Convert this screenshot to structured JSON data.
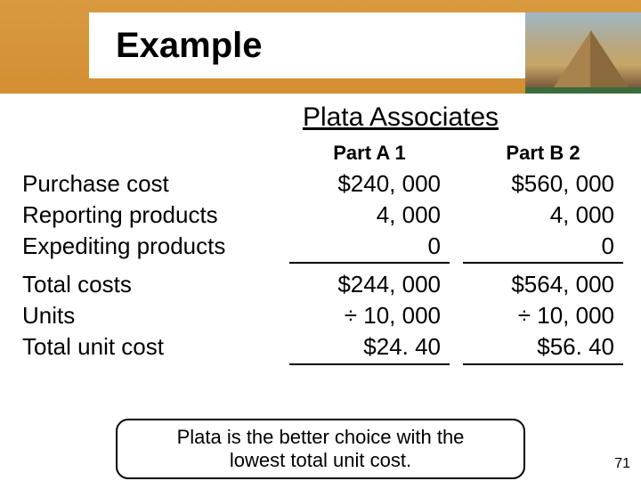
{
  "slide": {
    "title": "Example",
    "subtitle": "Plata Associates",
    "page_number": "71",
    "callout_line1": "Plata is the better choice with the",
    "callout_line2": "lowest total unit cost."
  },
  "table": {
    "col_a_header": "Part A 1",
    "col_b_header": "Part B 2",
    "rows_top": [
      {
        "label": "Purchase cost",
        "a": "$240, 000",
        "b": "$560, 000"
      },
      {
        "label": "Reporting products",
        "a": "4, 000",
        "b": "4, 000"
      },
      {
        "label": "Expediting products",
        "a": "0",
        "b": "0"
      }
    ],
    "rows_bottom": [
      {
        "label": "Total costs",
        "a": "$244, 000",
        "b": "$564, 000"
      },
      {
        "label": "Units",
        "a": "÷  10, 000",
        "b": "÷  10, 000"
      },
      {
        "label": "Total unit cost",
        "a": "$24. 40",
        "b": "$56. 40"
      }
    ]
  },
  "style": {
    "band_color": "#d38f32",
    "title_fontsize": 40,
    "subtitle_fontsize": 30,
    "body_fontsize": 26,
    "header_fontsize": 22,
    "callout_fontsize": 22,
    "page_fontsize": 16,
    "text_color": "#000000",
    "background_color": "#ffffff"
  }
}
